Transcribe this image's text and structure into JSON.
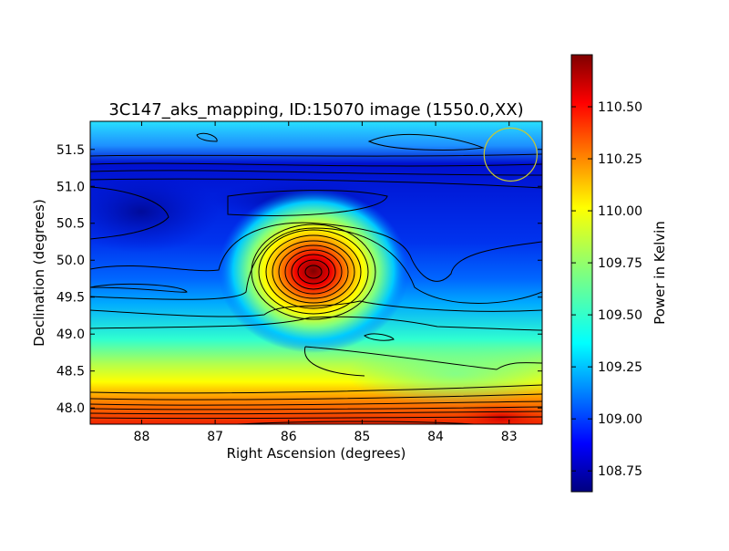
{
  "chart_data": {
    "type": "heatmap",
    "title": "3C147_aks_mapping, ID:15070 image (1550.0,XX)",
    "xlabel": "Right Ascension (degrees)",
    "ylabel": "Declination (degrees)",
    "xlim": [
      88.7,
      82.55
    ],
    "ylim": [
      47.78,
      51.88
    ],
    "x_ticks": [
      88,
      87,
      86,
      85,
      84,
      83
    ],
    "y_ticks": [
      48.0,
      48.5,
      49.0,
      49.5,
      50.0,
      50.5,
      51.0,
      51.5
    ],
    "x_tick_labels": [
      "88",
      "87",
      "86",
      "85",
      "84",
      "83"
    ],
    "y_tick_labels": [
      "48.0",
      "48.5",
      "49.0",
      "49.5",
      "50.0",
      "50.5",
      "51.0",
      "51.5"
    ],
    "colormap": "jet",
    "contours": true,
    "colorbar": {
      "label": "Power in Kelvin",
      "range": [
        108.65,
        110.75
      ],
      "ticks": [
        108.75,
        109.0,
        109.25,
        109.5,
        109.75,
        110.0,
        110.25,
        110.5
      ],
      "tick_labels": [
        "108.75",
        "109.00",
        "109.25",
        "109.50",
        "109.75",
        "110.00",
        "110.25",
        "110.50"
      ]
    },
    "features": {
      "peak": {
        "ra": 85.65,
        "dec": 49.85,
        "value": 110.65
      },
      "beam_circle": {
        "ra": 82.98,
        "dec": 51.43,
        "radius_deg": 0.36,
        "color": "#c8c832"
      }
    }
  }
}
